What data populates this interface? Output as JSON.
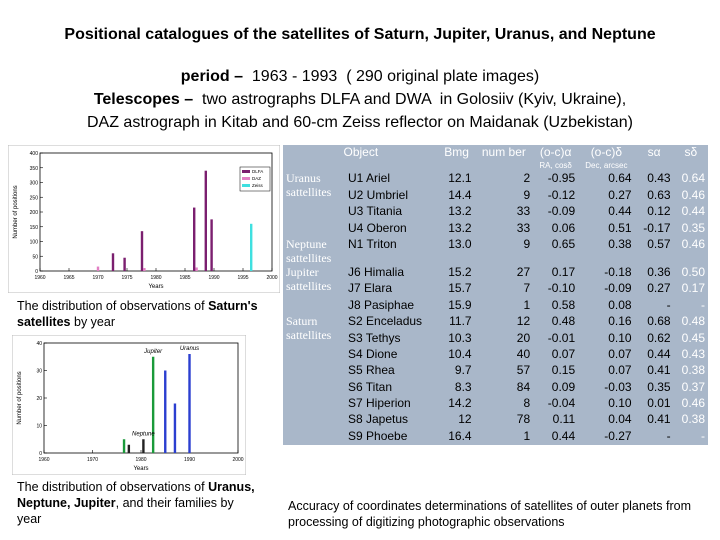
{
  "title": "Positional catalogues of the satellites of Saturn, Jupiter, Uranus, and Neptune",
  "subtitle": [
    {
      "bold": "period –",
      "text": "  1963 - 1993  ( 290 original plate images)"
    },
    {
      "bold": "Telescopes –",
      "text": "  two astrographs DLFA and DWA  in Golosiiv (Kyiv, Ukraine),"
    },
    {
      "bold": "",
      "text": "DAZ astrograph in Kitab  and 60-cm Zeiss reflector on Maidanak (Uzbekistan)"
    }
  ],
  "captions": [
    {
      "before": "The distribution of observations of ",
      "bold": "Saturn's satellites",
      "after": " by year"
    },
    {
      "before": "The distribution of observations of ",
      "bold": "Uranus, Neptune, Jupiter",
      "after": ", and their families by year"
    }
  ],
  "chart_data": [
    {
      "type": "bar",
      "xlabel": "Years",
      "ylabel": "Number of positions",
      "x": [
        1970,
        1973,
        1975,
        1978,
        1987,
        1989,
        1990,
        1996
      ],
      "series": [
        {
          "name": "DLFA",
          "color": "#7b1f6f",
          "values": [
            null,
            60,
            45,
            135,
            215,
            340,
            175,
            null
          ]
        },
        {
          "name": "DAZ",
          "color": "#e27fc4",
          "values": [
            15,
            null,
            null,
            10,
            12,
            null,
            null,
            null
          ]
        },
        {
          "name": "Zeiss",
          "color": "#3fe0e0",
          "values": [
            null,
            null,
            null,
            null,
            null,
            null,
            null,
            160
          ]
        }
      ],
      "xlim": [
        1960,
        2000
      ],
      "xticks": [
        1960,
        1965,
        1970,
        1975,
        1980,
        1985,
        1990,
        1995,
        2000
      ],
      "ylim": [
        0,
        400
      ],
      "yticks": [
        0,
        50,
        100,
        150,
        200,
        250,
        300,
        350,
        400
      ],
      "legend": "upper right"
    },
    {
      "type": "bar",
      "xlabel": "Years",
      "ylabel": "Number of positions",
      "x": [
        1977,
        1980,
        1983,
        1985,
        1987,
        1990
      ],
      "series": [
        {
          "name": "Jupiter",
          "color": "#1a9a3a",
          "values": [
            5,
            null,
            35,
            null,
            null,
            null
          ]
        },
        {
          "name": "Uranus",
          "color": "#2b3fd0",
          "values": [
            null,
            null,
            null,
            30,
            18,
            36
          ]
        },
        {
          "name": "Neptune",
          "color": "#222222",
          "values": [
            3,
            5,
            null,
            null,
            null,
            null
          ]
        }
      ],
      "xlim": [
        1960,
        2000
      ],
      "xticks": [
        1960,
        1970,
        1980,
        1990,
        2000
      ],
      "ylim": [
        0,
        40
      ],
      "yticks": [
        0,
        10,
        20,
        30,
        40
      ],
      "legend": "inline"
    }
  ],
  "table": {
    "header": [
      "Object",
      "Bmg",
      "num ber",
      "(o-c)α",
      "(o-c)δ",
      "sα",
      "sδ"
    ],
    "subheader": [
      "RA, cosδ",
      "Dec, arcsec"
    ],
    "groups": [
      {
        "label": "Uranus sattellites",
        "rows": [
          [
            "U1 Ariel",
            "12.1",
            "2",
            "-0.95",
            "0.64",
            "0.43",
            "0.64"
          ],
          [
            "U2 Umbriel",
            "14.4",
            "9",
            "-0.12",
            "0.27",
            "0.63",
            "0.46"
          ],
          [
            "U3 Titania",
            "13.2",
            "33",
            "-0.09",
            "0.44",
            "0.12",
            "0.44"
          ],
          [
            "U4 Oberon",
            "13.2",
            "33",
            "0.06",
            "0.51",
            "-0.17",
            "0.35"
          ]
        ]
      },
      {
        "label": "Neptune sattellites",
        "rows": [
          [
            "N1 Triton",
            "13.0",
            "9",
            "0.65",
            "0.38",
            "0.57",
            "0.46"
          ]
        ]
      },
      {
        "label": "Jupiter sattellites",
        "rows": [
          [
            "J6 Himalia",
            "15.2",
            "27",
            "0.17",
            "-0.18",
            "0.36",
            "0.50"
          ],
          [
            "J7 Elara",
            "15.7",
            "7",
            "-0.10",
            "-0.09",
            "0.27",
            "0.17"
          ],
          [
            "J8 Pasiphae",
            "15.9",
            "1",
            "0.58",
            "0.08",
            "-",
            "-"
          ]
        ]
      },
      {
        "label": "Saturn sattellites",
        "rows": [
          [
            "S2 Enceladus",
            "11.7",
            "12",
            "0.48",
            "0.16",
            "0.68",
            "0.48"
          ],
          [
            "S3 Tethys",
            "10.3",
            "20",
            "-0.01",
            "0.10",
            "0.62",
            "0.45"
          ],
          [
            "S4 Dione",
            "10.4",
            "40",
            "0.07",
            "0.07",
            "0.44",
            "0.43"
          ],
          [
            "S5 Rhea",
            "9.7",
            "57",
            "0.15",
            "0.07",
            "0.41",
            "0.38"
          ],
          [
            "S6 Titan",
            "8.3",
            "84",
            "0.09",
            "-0.03",
            "0.35",
            "0.37"
          ],
          [
            "S7 Hiperion",
            "14.2",
            "8",
            "-0.04",
            "0.10",
            "0.01",
            "0.46"
          ],
          [
            "S8 Japetus",
            "12",
            "78",
            "0.11",
            "0.04",
            "0.41",
            "0.38"
          ],
          [
            "S9 Phoebe",
            "16.4",
            "1",
            "0.44",
            "-0.27",
            "-",
            "-"
          ]
        ]
      }
    ],
    "caption": "Accuracy  of coordinates determinations  of  satellites of outer planets  from  processing  of digitizing  photographic observations"
  }
}
